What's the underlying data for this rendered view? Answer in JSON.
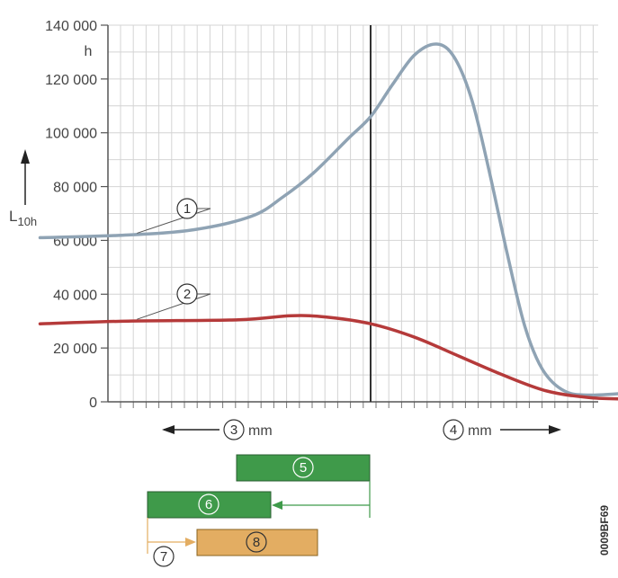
{
  "chart_data": {
    "type": "line",
    "ylabel": "L10h",
    "yunit": "h",
    "ylim": [
      0,
      140000
    ],
    "yticks": [
      "0",
      "20 000",
      "40 000",
      "60 000",
      "80 000",
      "100 000",
      "120 000",
      "140 000"
    ],
    "grid": true,
    "series": [
      {
        "marker": "1",
        "color": "#8fa3b4",
        "points": [
          [
            -7.5,
            61000
          ],
          [
            -5.5,
            62000
          ],
          [
            -4.0,
            64000
          ],
          [
            -2.7,
            69000
          ],
          [
            -2.0,
            76000
          ],
          [
            -1.3,
            85000
          ],
          [
            -0.5,
            98000
          ],
          [
            0.0,
            106000
          ],
          [
            0.5,
            118000
          ],
          [
            1.0,
            129000
          ],
          [
            1.5,
            133000
          ],
          [
            1.9,
            128000
          ],
          [
            2.3,
            112000
          ],
          [
            2.7,
            85000
          ],
          [
            3.1,
            55000
          ],
          [
            3.5,
            28000
          ],
          [
            3.9,
            12000
          ],
          [
            4.4,
            4000
          ],
          [
            5.0,
            2500
          ],
          [
            6.0,
            3500
          ]
        ]
      },
      {
        "marker": "2",
        "color": "#b53a3a",
        "points": [
          [
            -7.5,
            29000
          ],
          [
            -5.5,
            30000
          ],
          [
            -3.0,
            30500
          ],
          [
            -1.8,
            32000
          ],
          [
            -1.0,
            31500
          ],
          [
            0.0,
            29000
          ],
          [
            1.0,
            24000
          ],
          [
            2.0,
            17000
          ],
          [
            3.0,
            10000
          ],
          [
            4.0,
            4000
          ],
          [
            5.0,
            1500
          ],
          [
            6.0,
            1000
          ]
        ]
      }
    ],
    "direction_labels": [
      {
        "marker": "3",
        "text": "mm"
      },
      {
        "marker": "4",
        "text": "mm"
      }
    ],
    "boxes": [
      {
        "marker": "5",
        "color": "#3f9a4a"
      },
      {
        "marker": "6",
        "color": "#3f9a4a"
      },
      {
        "marker": "7",
        "color": ""
      },
      {
        "marker": "8",
        "color": "#e3ad62"
      }
    ],
    "figure_code": "0009BF69"
  }
}
